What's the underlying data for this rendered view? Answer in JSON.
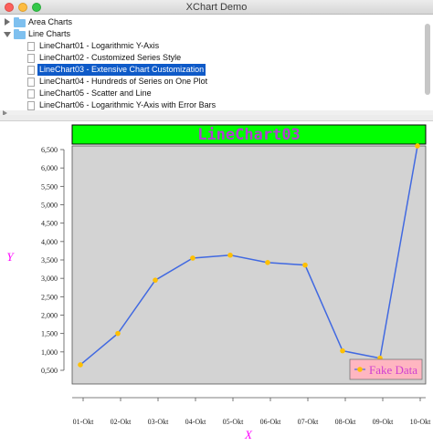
{
  "window": {
    "title": "XChart Demo"
  },
  "tree": {
    "folders": [
      {
        "label": "Area Charts",
        "expanded": false
      },
      {
        "label": "Line Charts",
        "expanded": true
      }
    ],
    "items": [
      {
        "label": "LineChart01 - Logarithmic Y-Axis",
        "selected": false
      },
      {
        "label": "LineChart02 - Customized Series Style",
        "selected": false
      },
      {
        "label": "LineChart03 - Extensive Chart Customization",
        "selected": true
      },
      {
        "label": "LineChart04 - Hundreds of Series on One Plot",
        "selected": false
      },
      {
        "label": "LineChart05 - Scatter and Line",
        "selected": false
      },
      {
        "label": "LineChart06 - Logarithmic Y-Axis with Error Bars",
        "selected": false
      }
    ]
  },
  "colors": {
    "title_bg": "#00ff00",
    "title_text": "#b040d0",
    "plot_bg": "#d3d3d3",
    "series_line": "#4169e1",
    "marker": "#ffc000",
    "legend_bg": "#ffb6c1",
    "legend_text": "#d040d0",
    "axis_title": "#ff00ff"
  },
  "chart_data": {
    "type": "line",
    "title": "LineChart03",
    "xlabel": "X",
    "ylabel": "Y",
    "categories": [
      "01-Okt",
      "02-Okt",
      "03-Okt",
      "04-Okt",
      "05-Okt",
      "06-Okt",
      "07-Okt",
      "08-Okt",
      "09-Okt",
      "10-Okt"
    ],
    "series": [
      {
        "name": "Fake Data",
        "values": [
          650,
          1500,
          2950,
          3550,
          3630,
          3430,
          3360,
          1030,
          830,
          6600
        ]
      }
    ],
    "yticks": [
      "0,500",
      "1,000",
      "1,500",
      "2,000",
      "2,500",
      "3,000",
      "3,500",
      "4,000",
      "4,500",
      "5,000",
      "5,500",
      "6,000",
      "6,500"
    ],
    "ytick_values": [
      500,
      1000,
      1500,
      2000,
      2500,
      3000,
      3500,
      4000,
      4500,
      5000,
      5500,
      6000,
      6500
    ],
    "legend_position": "bottom-right",
    "grid": false
  }
}
